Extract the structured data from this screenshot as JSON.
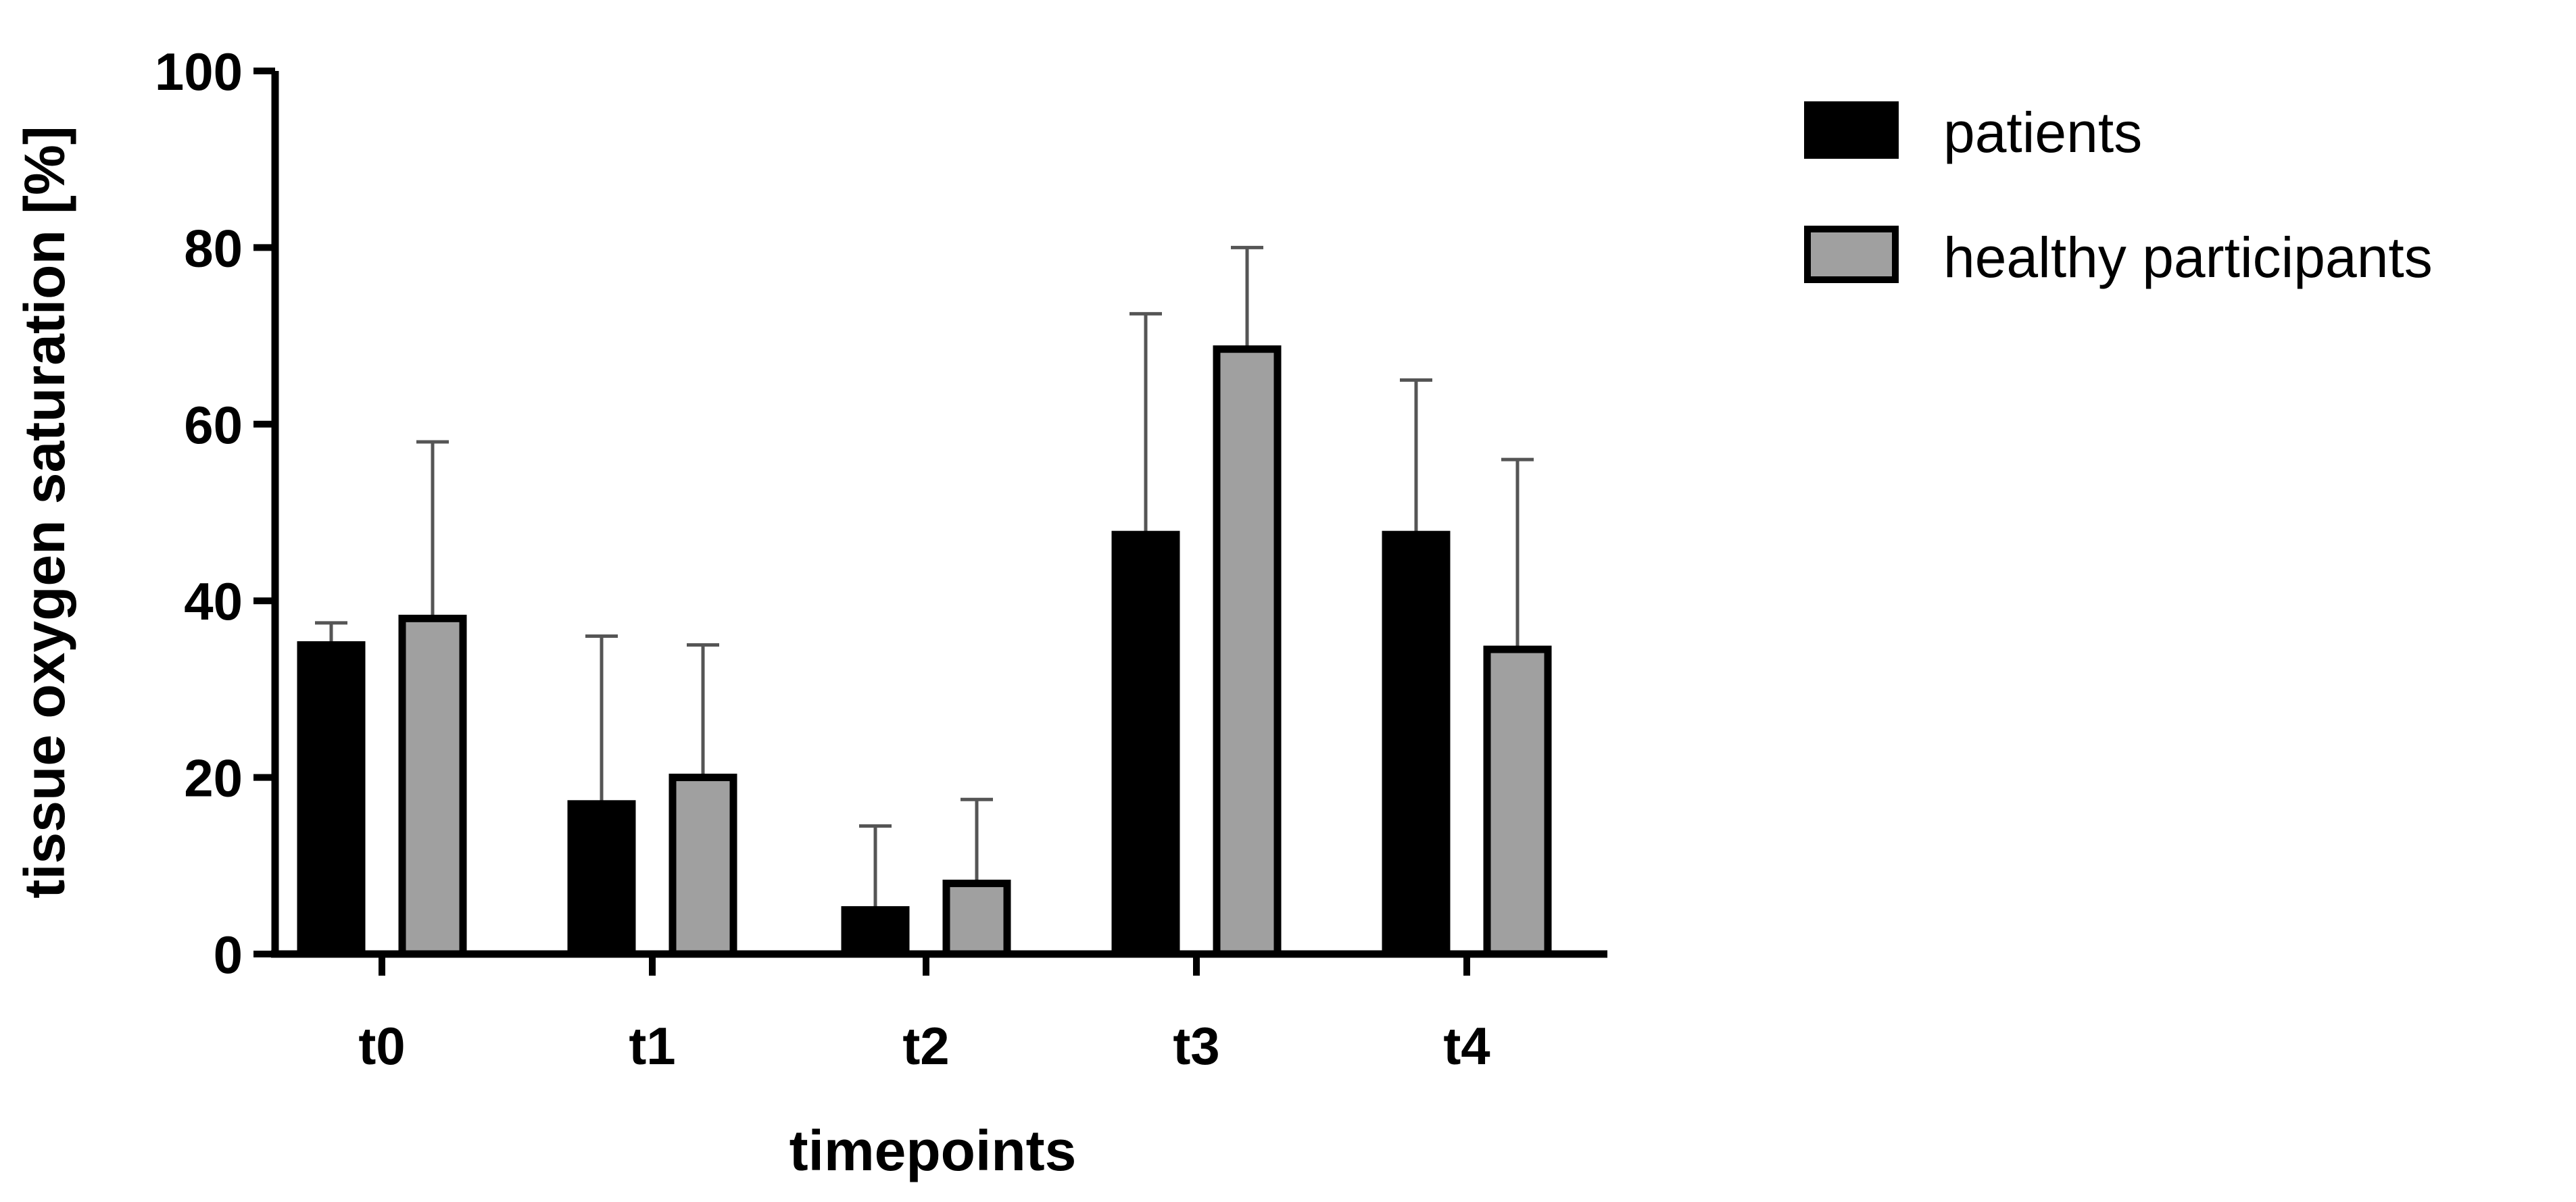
{
  "chart_data": {
    "type": "bar",
    "categories": [
      "t0",
      "t1",
      "t2",
      "t3",
      "t4"
    ],
    "xlabel": "timepoints",
    "ylabel": "tissue oxygen saturation [%]",
    "ylim": [
      0,
      100
    ],
    "yticks": [
      0,
      20,
      40,
      60,
      80,
      100
    ],
    "grid": false,
    "legend_position": "top-right",
    "error_bars": "upper",
    "series": [
      {
        "name": "patients",
        "values": [
          35,
          17,
          5,
          47.5,
          47.5
        ],
        "error_upper": [
          37.5,
          36,
          14.5,
          72.5,
          65
        ],
        "fill": "#000000",
        "stroke": "#000000"
      },
      {
        "name": "healthy participants",
        "values": [
          38,
          20,
          8,
          68.5,
          34.5
        ],
        "error_upper": [
          58,
          35,
          17.5,
          80,
          56
        ],
        "fill": "#a0a0a0",
        "stroke": "#000000"
      }
    ]
  }
}
